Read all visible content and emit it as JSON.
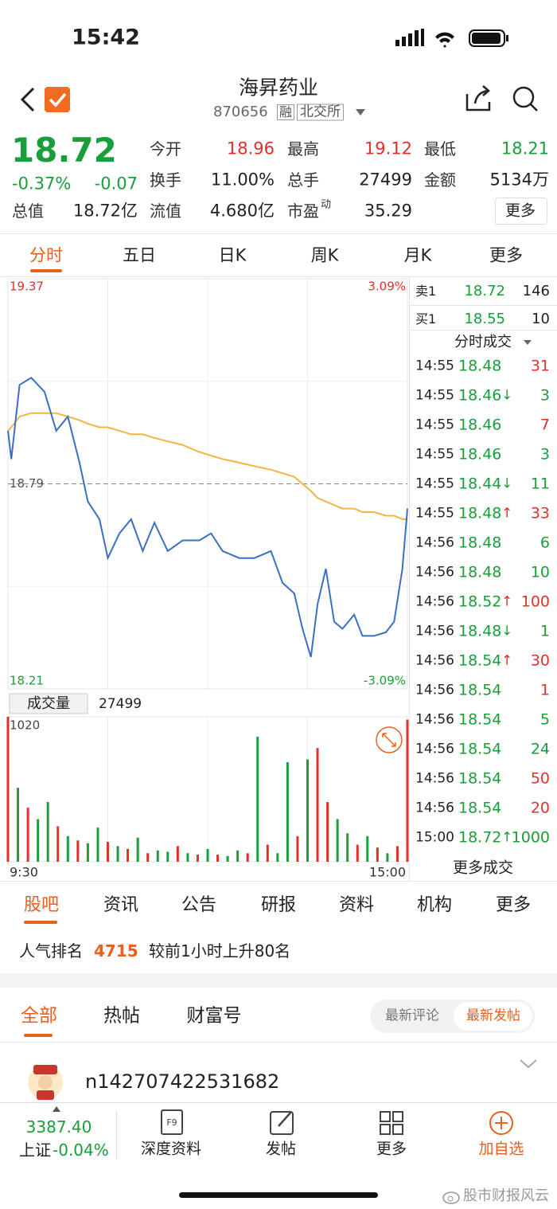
{
  "status_bar": {
    "time": "15:42"
  },
  "header": {
    "title": "海昇药业",
    "code": "870656",
    "tag_margin": "融",
    "tag_exchange": "北交所"
  },
  "quote": {
    "price": "18.72",
    "change_pct": "-0.37%",
    "change": "-0.07",
    "open_label": "今开",
    "open": "18.96",
    "high_label": "最高",
    "high": "19.12",
    "low_label": "最低",
    "low": "18.21",
    "turnover_label": "换手",
    "turnover": "11.00%",
    "volume_label": "总手",
    "volume": "27499",
    "amount_label": "金额",
    "amount": "5134万",
    "mcap_label": "总值",
    "mcap": "18.72亿",
    "float_label": "流值",
    "float": "4.680亿",
    "pe_label": "市盈",
    "pe_sup": "动",
    "pe": "35.29",
    "more": "更多"
  },
  "period_tabs": [
    "分时",
    "五日",
    "日K",
    "周K",
    "月K",
    "更多"
  ],
  "chart_data": [
    {
      "type": "line",
      "xlim": [
        0,
        240
      ],
      "ylim": [
        18.21,
        19.37
      ],
      "yticks": [
        18.21,
        18.79,
        19.37
      ],
      "y2lim": [
        -3.09,
        3.09
      ],
      "y2ticks": [
        {
          "value": -3.09,
          "label": "-3.09%"
        },
        {
          "value": 3.09,
          "label": "3.09%"
        }
      ],
      "x": [
        0,
        2,
        7,
        14,
        22,
        29,
        36,
        43,
        48,
        55,
        60,
        67,
        74,
        81,
        88,
        96,
        105,
        115,
        122,
        129,
        139,
        148,
        158,
        165,
        172,
        177,
        182,
        186,
        191,
        196,
        201,
        208,
        213,
        220,
        227,
        232,
        237,
        240
      ],
      "series": [
        {
          "color": "#3a6fc4",
          "values": [
            18.94,
            18.86,
            19.07,
            19.09,
            19.05,
            18.94,
            18.98,
            18.85,
            18.74,
            18.69,
            18.58,
            18.65,
            18.69,
            18.6,
            18.68,
            18.6,
            18.63,
            18.63,
            18.65,
            18.6,
            18.58,
            18.58,
            18.6,
            18.51,
            18.48,
            18.38,
            18.3,
            18.45,
            18.55,
            18.4,
            18.38,
            18.42,
            18.36,
            18.36,
            18.37,
            18.4,
            18.55,
            18.72
          ]
        },
        {
          "color": "#f2b544",
          "values": [
            18.94,
            18.95,
            18.98,
            18.99,
            18.99,
            18.99,
            18.98,
            18.97,
            18.96,
            18.95,
            18.95,
            18.94,
            18.93,
            18.93,
            18.92,
            18.91,
            18.9,
            18.88,
            18.87,
            18.86,
            18.85,
            18.84,
            18.83,
            18.82,
            18.81,
            18.79,
            18.77,
            18.75,
            18.74,
            18.73,
            18.72,
            18.72,
            18.71,
            18.71,
            18.7,
            18.7,
            18.69,
            18.69
          ]
        }
      ]
    },
    {
      "type": "bar",
      "title": "成交量",
      "total": "27499",
      "xlim": [
        0,
        240
      ],
      "xticks": [
        {
          "value": 0,
          "label": "9:30"
        },
        {
          "value": 240,
          "label": "15:00"
        }
      ],
      "ylim": [
        0,
        1020
      ],
      "yticks": [
        1020
      ],
      "x": [
        0,
        6,
        12,
        18,
        24,
        30,
        36,
        42,
        48,
        54,
        60,
        66,
        72,
        78,
        84,
        90,
        96,
        102,
        108,
        114,
        120,
        126,
        132,
        138,
        144,
        150,
        156,
        162,
        168,
        174,
        180,
        186,
        192,
        198,
        204,
        210,
        216,
        222,
        228,
        234,
        240
      ],
      "values": [
        1020,
        520,
        380,
        300,
        420,
        250,
        180,
        150,
        130,
        240,
        140,
        110,
        90,
        170,
        60,
        80,
        70,
        110,
        60,
        50,
        90,
        50,
        40,
        80,
        60,
        880,
        120,
        60,
        700,
        180,
        720,
        800,
        420,
        300,
        200,
        120,
        180,
        100,
        60,
        110,
        1000
      ],
      "colors": [
        "#e0302a",
        "#1a9e3a",
        "#e0302a",
        "#1a9e3a",
        "#1a9e3a",
        "#e0302a",
        "#1a9e3a",
        "#e0302a",
        "#1a9e3a",
        "#1a9e3a",
        "#e0302a",
        "#1a9e3a",
        "#e0302a",
        "#1a9e3a",
        "#e0302a",
        "#1a9e3a",
        "#1a9e3a",
        "#e0302a",
        "#1a9e3a",
        "#e0302a",
        "#1a9e3a",
        "#e0302a",
        "#1a9e3a",
        "#1a9e3a",
        "#e0302a",
        "#1a9e3a",
        "#e0302a",
        "#1a9e3a",
        "#1a9e3a",
        "#e0302a",
        "#1a9e3a",
        "#e0302a",
        "#e0302a",
        "#1a9e3a",
        "#1a9e3a",
        "#e0302a",
        "#1a9e3a",
        "#e0302a",
        "#1a9e3a",
        "#e0302a",
        "#e0302a"
      ]
    }
  ],
  "order_book": [
    {
      "label": "卖1",
      "price": "18.72",
      "volume": "146"
    },
    {
      "label": "买1",
      "price": "18.55",
      "volume": "10"
    }
  ],
  "trades_title": "分时成交",
  "trades": [
    {
      "time": "14:55",
      "price": "18.48",
      "volume": "31",
      "color": "#e0302a"
    },
    {
      "time": "14:55",
      "price": "18.46",
      "arrow": "↓",
      "volume": "3",
      "color": "#1a9e3a"
    },
    {
      "time": "14:55",
      "price": "18.46",
      "volume": "7",
      "color": "#e0302a"
    },
    {
      "time": "14:55",
      "price": "18.46",
      "volume": "3",
      "color": "#1a9e3a"
    },
    {
      "time": "14:55",
      "price": "18.44",
      "arrow": "↓",
      "volume": "11",
      "color": "#1a9e3a"
    },
    {
      "time": "14:55",
      "price": "18.48",
      "arrow": "↑",
      "volume": "33",
      "color": "#e0302a"
    },
    {
      "time": "14:56",
      "price": "18.48",
      "volume": "6",
      "color": "#1a9e3a"
    },
    {
      "time": "14:56",
      "price": "18.48",
      "volume": "10",
      "color": "#1a9e3a"
    },
    {
      "time": "14:56",
      "price": "18.52",
      "arrow": "↑",
      "volume": "100",
      "color": "#e0302a"
    },
    {
      "time": "14:56",
      "price": "18.48",
      "arrow": "↓",
      "volume": "1",
      "color": "#1a9e3a"
    },
    {
      "time": "14:56",
      "price": "18.54",
      "arrow": "↑",
      "volume": "30",
      "color": "#e0302a"
    },
    {
      "time": "14:56",
      "price": "18.54",
      "volume": "1",
      "color": "#e0302a"
    },
    {
      "time": "14:56",
      "price": "18.54",
      "volume": "5",
      "color": "#1a9e3a"
    },
    {
      "time": "14:56",
      "price": "18.54",
      "volume": "24",
      "color": "#1a9e3a"
    },
    {
      "time": "14:56",
      "price": "18.54",
      "volume": "50",
      "color": "#e0302a"
    },
    {
      "time": "14:56",
      "price": "18.54",
      "volume": "20",
      "color": "#e0302a"
    },
    {
      "time": "15:00",
      "price": "18.72",
      "arrow": "↑",
      "volume": "1000",
      "color": "#1a9e3a"
    }
  ],
  "trades_more": "更多成交",
  "news_tabs": [
    "股吧",
    "资讯",
    "公告",
    "研报",
    "资料",
    "机构",
    "更多"
  ],
  "popularity": {
    "label": "人气排名",
    "rank": "4715",
    "note": "较前1小时上升80名"
  },
  "forum_tabs": [
    "全部",
    "热帖",
    "财富号"
  ],
  "sort_toggle": [
    "最新评论",
    "最新发帖"
  ],
  "post": {
    "user": "n142707422531682"
  },
  "bottom_bar": {
    "index_value": "3387.40",
    "index_name": "上证",
    "index_change": "-0.04%",
    "items": [
      "深度资料",
      "发帖",
      "更多",
      "加自选"
    ]
  },
  "watermark": "股市财报风云"
}
